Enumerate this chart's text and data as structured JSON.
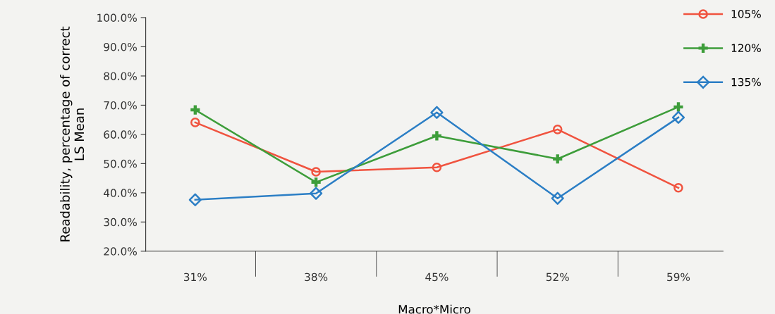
{
  "chart_data": {
    "type": "line",
    "xlabel": "Macro*Micro",
    "ylabel": "Readability, percentage of correct\nLS Mean",
    "categories": [
      "31%",
      "38%",
      "45%",
      "52%",
      "59%"
    ],
    "series": [
      {
        "name": "105%",
        "color": "#f0533f",
        "marker": "circle",
        "values": [
          64.1,
          47.2,
          48.7,
          61.7,
          41.7
        ]
      },
      {
        "name": "120%",
        "color": "#3d9d3a",
        "marker": "cross",
        "values": [
          68.4,
          43.6,
          59.5,
          51.6,
          69.4
        ]
      },
      {
        "name": "135%",
        "color": "#2b7ec5",
        "marker": "diamond",
        "values": [
          37.6,
          39.8,
          67.5,
          38.1,
          65.8
        ]
      }
    ],
    "ylim": [
      20,
      100
    ],
    "yticks": [
      {
        "value": 20,
        "label": "20.0%"
      },
      {
        "value": 30,
        "label": "30.0%"
      },
      {
        "value": 40,
        "label": "40.0%"
      },
      {
        "value": 50,
        "label": "50.0%"
      },
      {
        "value": 60,
        "label": "60.0%"
      },
      {
        "value": 70,
        "label": "70.0%"
      },
      {
        "value": 80,
        "label": "80.0%"
      },
      {
        "value": 90,
        "label": "90.0%"
      },
      {
        "value": 100,
        "label": "100.0%"
      }
    ],
    "grid": false,
    "legend": "top right",
    "line_style": "solid"
  }
}
